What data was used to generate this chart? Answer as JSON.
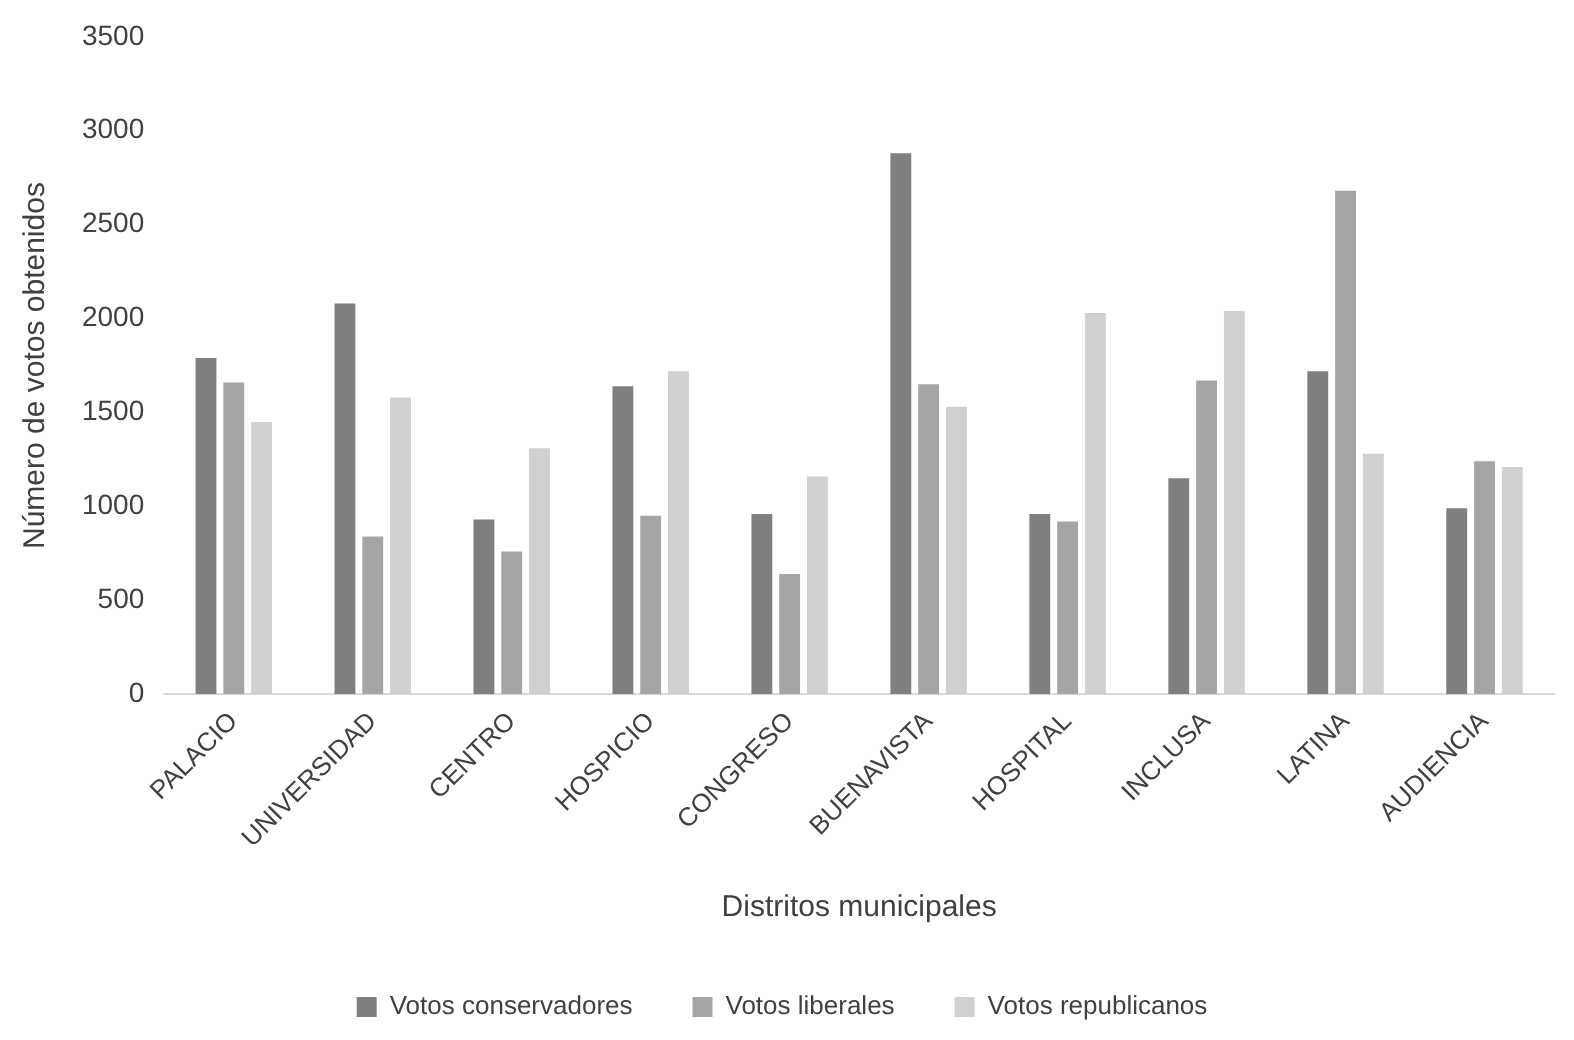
{
  "chart_data": {
    "type": "bar",
    "xlabel": "Distritos municipales",
    "ylabel": "Número de votos obtenidos",
    "categories": [
      "PALACIO",
      "UNIVERSIDAD",
      "CENTRO",
      "HOSPICIO",
      "CONGRESO",
      "BUENAVISTA",
      "HOSPITAL",
      "INCLUSA",
      "LATINA",
      "AUDIENCIA"
    ],
    "series": [
      {
        "name": "Votos conservadores",
        "color": "#7f7f7f",
        "values": [
          1790,
          2080,
          930,
          1640,
          960,
          2880,
          960,
          1150,
          1720,
          990
        ]
      },
      {
        "name": "Votos liberales",
        "color": "#a5a5a5",
        "values": [
          1660,
          840,
          760,
          950,
          640,
          1650,
          920,
          1670,
          2680,
          1240
        ]
      },
      {
        "name": "Votos republicanos",
        "color": "#d0d0d0",
        "values": [
          1450,
          1580,
          1310,
          1720,
          1160,
          1530,
          2030,
          2040,
          1280,
          1210
        ]
      }
    ],
    "ylim": [
      0,
      3500
    ],
    "yticks": [
      0,
      500,
      1000,
      1500,
      2000,
      2500,
      3000,
      3500
    ],
    "grid": false,
    "legend": "bottom"
  }
}
